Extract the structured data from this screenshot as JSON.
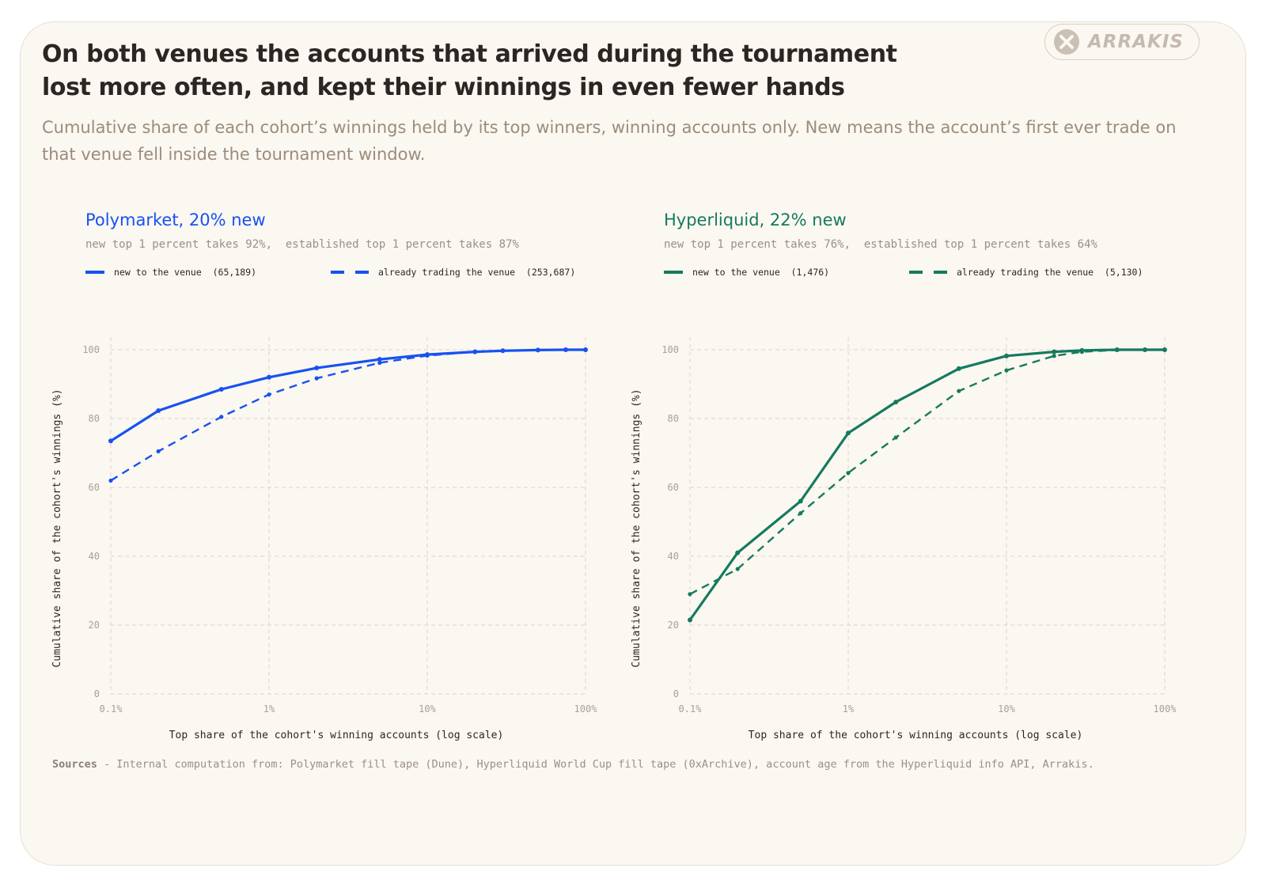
{
  "title": "On both venues the accounts that arrived during the tournament lost more often, and kept their winnings in even fewer hands",
  "subtitle": "Cumulative share of each cohort’s winnings held by its top winners, winning accounts only. New means the account’s first ever trade on that venue fell inside the tournament window.",
  "logo": {
    "text": "ARRAKIS",
    "icon": "arrakis-x-logo-icon"
  },
  "sources": {
    "label": "Sources",
    "text": " - Internal computation from: Polymarket fill tape (Dune), Hyperliquid World Cup fill tape (0xArchive), account age from the Hyperliquid info API, Arrakis."
  },
  "panels": [
    {
      "title": "Polymarket, 20% new",
      "subtitle": "new top 1 percent takes 92%,  established top 1 percent takes 87%",
      "legend_new": "new to the venue  (65,189)",
      "legend_est": "already trading the venue  (253,687)",
      "color": "#1652f0"
    },
    {
      "title": "Hyperliquid, 22% new",
      "subtitle": "new top 1 percent takes 76%,  established top 1 percent takes 64%",
      "legend_new": "new to the venue  (1,476)",
      "legend_est": "already trading the venue  (5,130)",
      "color": "#157a5f"
    }
  ],
  "chart_data": [
    {
      "type": "line",
      "x_scale": "log",
      "xlabel": "Top share of the cohort's winning accounts (log scale)",
      "ylabel": "Cumulative share of the cohort's winnings (%)",
      "xlim": [
        0.1,
        100
      ],
      "ylim": [
        0,
        100
      ],
      "x_ticks": [
        0.1,
        1,
        10,
        100
      ],
      "x_tick_labels": [
        "0.1%",
        "1%",
        "10%",
        "100%"
      ],
      "y_ticks": [
        0,
        20,
        40,
        60,
        80,
        100
      ],
      "y_tick_labels": [
        "0",
        "20",
        "40",
        "60",
        "80",
        "100"
      ],
      "grid": true,
      "series": [
        {
          "name": "new to the venue  (65,189)",
          "style": "solid",
          "x": [
            0.1,
            0.2,
            0.5,
            1,
            2,
            5,
            10,
            20,
            30,
            50,
            75,
            100
          ],
          "y": [
            73.5,
            82.3,
            88.5,
            92,
            94.7,
            97.2,
            98.6,
            99.4,
            99.7,
            99.9,
            100,
            100
          ]
        },
        {
          "name": "already trading the venue  (253,687)",
          "style": "dashed",
          "x": [
            0.1,
            0.2,
            0.5,
            1,
            2,
            5,
            10,
            20,
            30,
            50,
            75,
            100
          ],
          "y": [
            62,
            70.5,
            80.5,
            87,
            91.7,
            96.2,
            98.3,
            99.4,
            99.7,
            99.9,
            100,
            100
          ]
        }
      ]
    },
    {
      "type": "line",
      "x_scale": "log",
      "xlabel": "Top share of the cohort's winning accounts (log scale)",
      "ylabel": "Cumulative share of the cohort's winnings (%)",
      "xlim": [
        0.1,
        100
      ],
      "ylim": [
        0,
        100
      ],
      "x_ticks": [
        0.1,
        1,
        10,
        100
      ],
      "x_tick_labels": [
        "0.1%",
        "1%",
        "10%",
        "100%"
      ],
      "y_ticks": [
        0,
        20,
        40,
        60,
        80,
        100
      ],
      "y_tick_labels": [
        "0",
        "20",
        "40",
        "60",
        "80",
        "100"
      ],
      "grid": true,
      "series": [
        {
          "name": "new to the venue  (1,476)",
          "style": "solid",
          "x": [
            0.1,
            0.2,
            0.5,
            1,
            2,
            5,
            10,
            20,
            30,
            50,
            75,
            100
          ],
          "y": [
            21.5,
            41,
            56,
            75.8,
            84.8,
            94.5,
            98.2,
            99.4,
            99.8,
            100,
            100,
            100
          ]
        },
        {
          "name": "already trading the venue  (5,130)",
          "style": "dashed",
          "x": [
            0.1,
            0.2,
            0.5,
            1,
            2,
            5,
            10,
            20,
            30,
            50,
            75,
            100
          ],
          "y": [
            29,
            36.3,
            52.5,
            64.2,
            74.5,
            88,
            94,
            98.2,
            99.4,
            99.9,
            100,
            100
          ]
        }
      ]
    }
  ]
}
